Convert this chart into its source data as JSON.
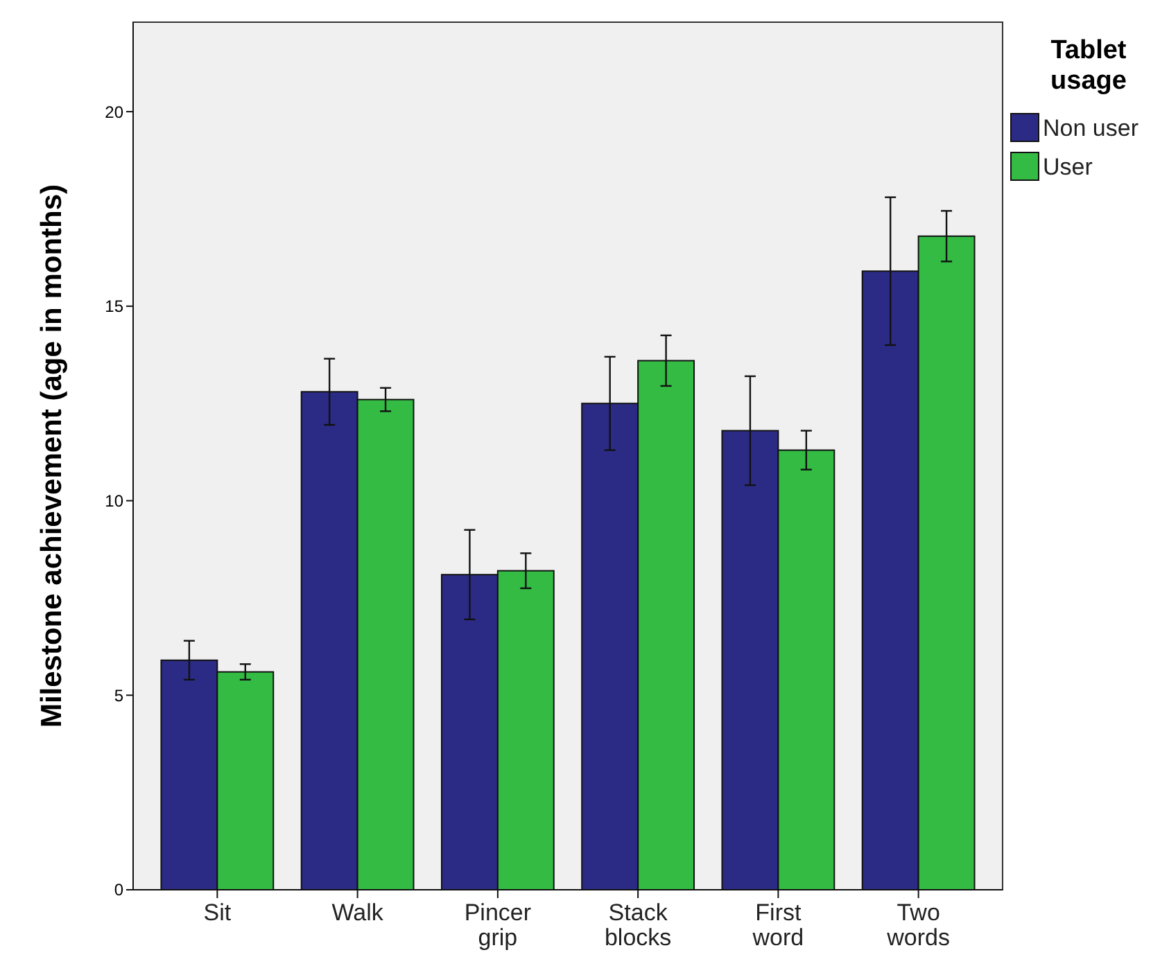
{
  "chart_data": {
    "type": "bar",
    "ylabel": "Milestone achievement (age in months)",
    "legend_title": "Tablet usage",
    "categories": [
      "Sit",
      "Walk",
      "Pincer grip",
      "Stack blocks",
      "First word",
      "Two words"
    ],
    "series": [
      {
        "name": "Non user",
        "color": "#2b2b85",
        "values": [
          5.9,
          12.8,
          8.1,
          12.5,
          11.8,
          15.9
        ],
        "errors": [
          0.5,
          0.85,
          1.15,
          1.2,
          1.4,
          1.9
        ]
      },
      {
        "name": "User",
        "color": "#33bb44",
        "values": [
          5.6,
          12.6,
          8.2,
          13.6,
          11.3,
          16.8
        ],
        "errors": [
          0.2,
          0.3,
          0.45,
          0.65,
          0.5,
          0.65
        ]
      }
    ],
    "ylim": [
      0,
      22.3
    ],
    "yticks": [
      0,
      5,
      10,
      15,
      20
    ],
    "grid": false,
    "legend": "top right"
  }
}
